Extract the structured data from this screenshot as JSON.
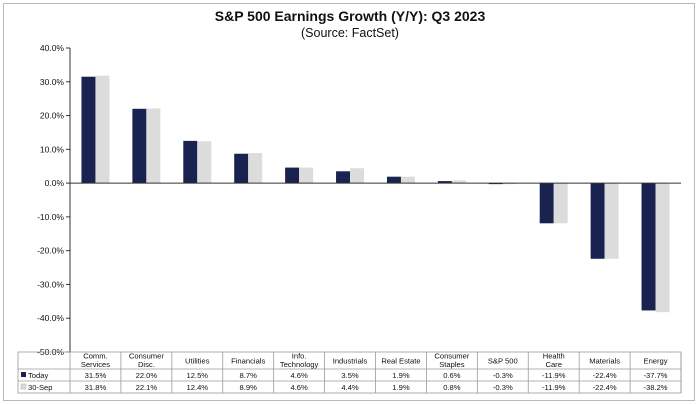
{
  "chart_data": {
    "type": "bar",
    "title": "S&P 500 Earnings Growth (Y/Y): Q3 2023",
    "subtitle": "(Source: FactSet)",
    "categories": [
      [
        "Comm.",
        "Services"
      ],
      [
        "Consumer",
        "Disc."
      ],
      [
        "Utilities"
      ],
      [
        "Financials"
      ],
      [
        "Info.",
        "Technology"
      ],
      [
        "Industrials"
      ],
      [
        "Real Estate"
      ],
      [
        "Consumer",
        "Staples"
      ],
      [
        "S&P 500"
      ],
      [
        "Health",
        "Care"
      ],
      [
        "Materials"
      ],
      [
        "Energy"
      ]
    ],
    "series": [
      {
        "name": "Today",
        "color": "#1a2350",
        "values": [
          31.5,
          22.0,
          12.5,
          8.7,
          4.6,
          3.5,
          1.9,
          0.6,
          -0.3,
          -11.9,
          -22.4,
          -37.7
        ],
        "labels": [
          "31.5%",
          "22.0%",
          "12.5%",
          "8.7%",
          "4.6%",
          "3.5%",
          "1.9%",
          "0.6%",
          "-0.3%",
          "-11.9%",
          "-22.4%",
          "-37.7%"
        ]
      },
      {
        "name": "30-Sep",
        "color": "#dcdcdc",
        "values": [
          31.8,
          22.1,
          12.4,
          8.9,
          4.6,
          4.4,
          1.9,
          0.8,
          -0.3,
          -11.9,
          -22.4,
          -38.2
        ],
        "labels": [
          "31.8%",
          "22.1%",
          "12.4%",
          "8.9%",
          "4.6%",
          "4.4%",
          "1.9%",
          "0.8%",
          "-0.3%",
          "-11.9%",
          "-22.4%",
          "-38.2%"
        ]
      }
    ],
    "yticks": [
      {
        "value": 40,
        "label": "40.0%"
      },
      {
        "value": 30,
        "label": "30.0%"
      },
      {
        "value": 20,
        "label": "20.0%"
      },
      {
        "value": 10,
        "label": "10.0%"
      },
      {
        "value": 0,
        "label": "0.0%"
      },
      {
        "value": -10,
        "label": "-10.0%"
      },
      {
        "value": -20,
        "label": "-20.0%"
      },
      {
        "value": -30,
        "label": "-30.0%"
      },
      {
        "value": -40,
        "label": "-40.0%"
      },
      {
        "value": -50,
        "label": "-50.0%"
      }
    ],
    "ylim": [
      -50,
      40
    ],
    "grid": false,
    "legend": "data-table"
  }
}
